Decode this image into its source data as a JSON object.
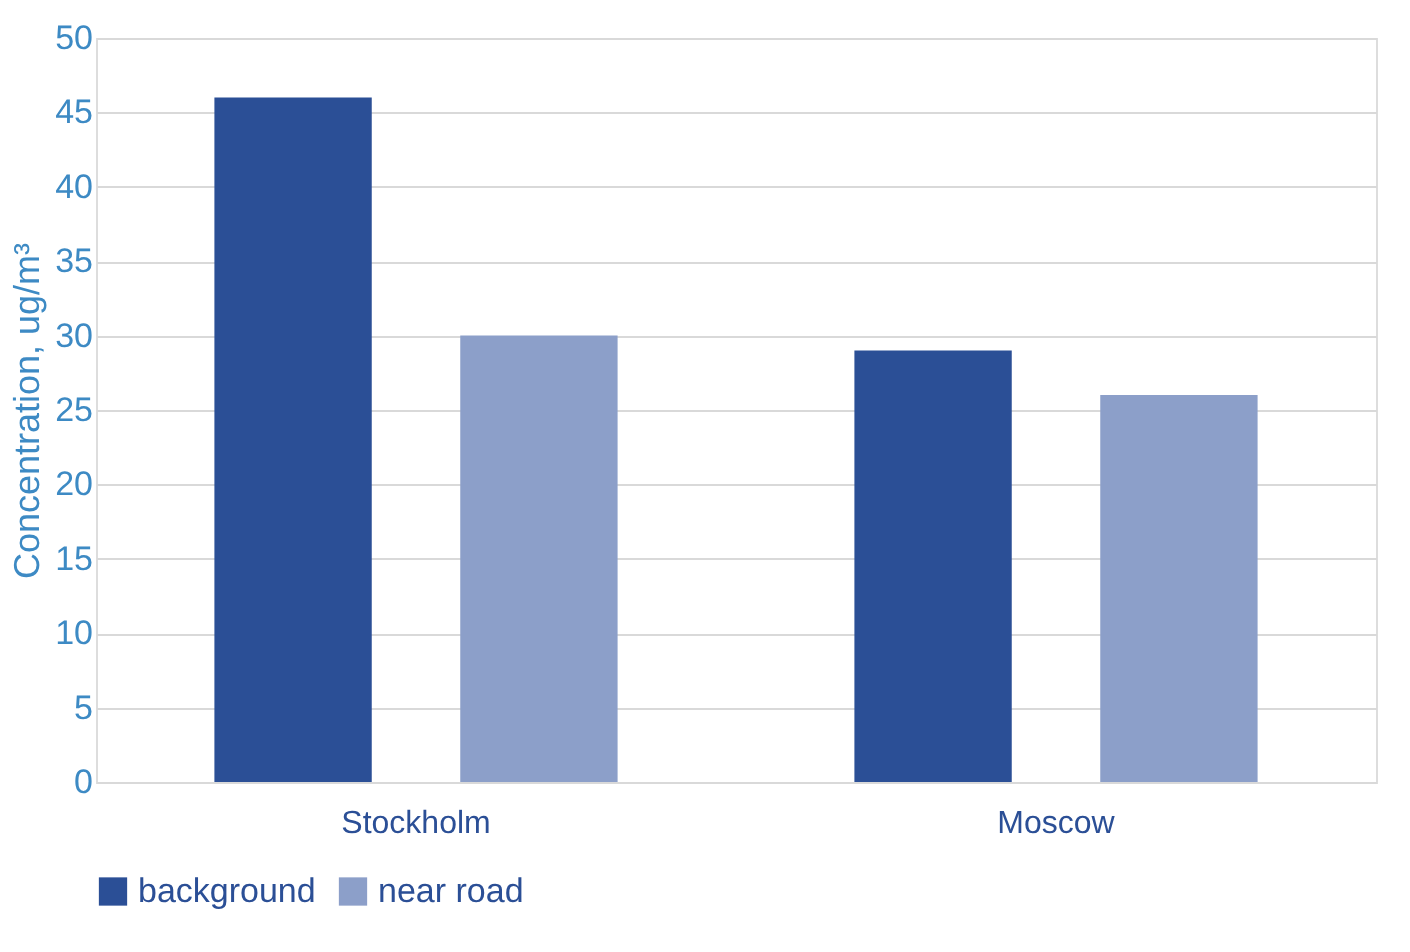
{
  "chart_data": {
    "type": "bar",
    "ylabel": "Concentration, ug/m³",
    "categories": [
      "Stockholm",
      "Moscow"
    ],
    "series": [
      {
        "name": "background",
        "color": "#2b4f96",
        "values": [
          46,
          29
        ]
      },
      {
        "name": "near road",
        "color": "#8c9fc9",
        "values": [
          30,
          26
        ]
      }
    ],
    "ylim": [
      0,
      50
    ],
    "yticks": [
      0,
      5,
      10,
      15,
      20,
      25,
      30,
      35,
      40,
      45,
      50
    ],
    "grid": "y",
    "legend": "bottom"
  }
}
